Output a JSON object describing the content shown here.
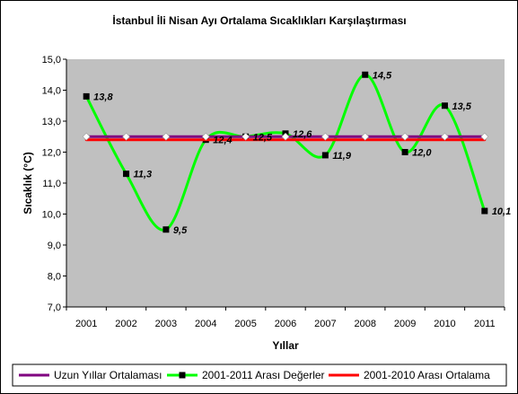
{
  "chart_data": {
    "type": "line",
    "title": "İstanbul İli Nisan Ayı Ortalama Sıcaklıkları Karşılaştırması",
    "xlabel": "Yıllar",
    "ylabel": "Sıcaklık (°C)",
    "ylim": [
      7.0,
      15.0
    ],
    "yticks": [
      "7,0",
      "8,0",
      "9,0",
      "10,0",
      "11,0",
      "12,0",
      "13,0",
      "14,0",
      "15,0"
    ],
    "categories": [
      "2001",
      "2002",
      "2003",
      "2004",
      "2005",
      "2006",
      "2007",
      "2008",
      "2009",
      "2010",
      "2011"
    ],
    "grid": false,
    "legend_position": "bottom",
    "background_color": "#c0c0c0",
    "series": [
      {
        "name": "Uzun Yıllar Ortalaması",
        "color": "#800080",
        "line_style": "solid",
        "marker": "diamond",
        "marker_color": "#ffffff",
        "values": [
          12.5,
          12.5,
          12.5,
          12.5,
          12.5,
          12.5,
          12.5,
          12.5,
          12.5,
          12.5,
          12.5
        ]
      },
      {
        "name": "2001-2011 Arası Değerler",
        "color": "#00ff00",
        "line_style": "smooth",
        "marker": "square",
        "marker_color": "#000000",
        "values": [
          13.8,
          11.3,
          9.5,
          12.4,
          12.5,
          12.6,
          11.9,
          14.5,
          12.0,
          13.5,
          10.1
        ],
        "labels": [
          "13,8",
          "11,3",
          "9,5",
          "12,4",
          "12,5",
          "12,6",
          "11,9",
          "14,5",
          "12,0",
          "13,5",
          "10,1"
        ]
      },
      {
        "name": "2001-2010 Arası Ortalama",
        "color": "#ff0000",
        "line_style": "solid",
        "marker": "none",
        "values": [
          12.4,
          12.4,
          12.4,
          12.4,
          12.4,
          12.4,
          12.4,
          12.4,
          12.4,
          12.4,
          12.4
        ]
      }
    ]
  }
}
